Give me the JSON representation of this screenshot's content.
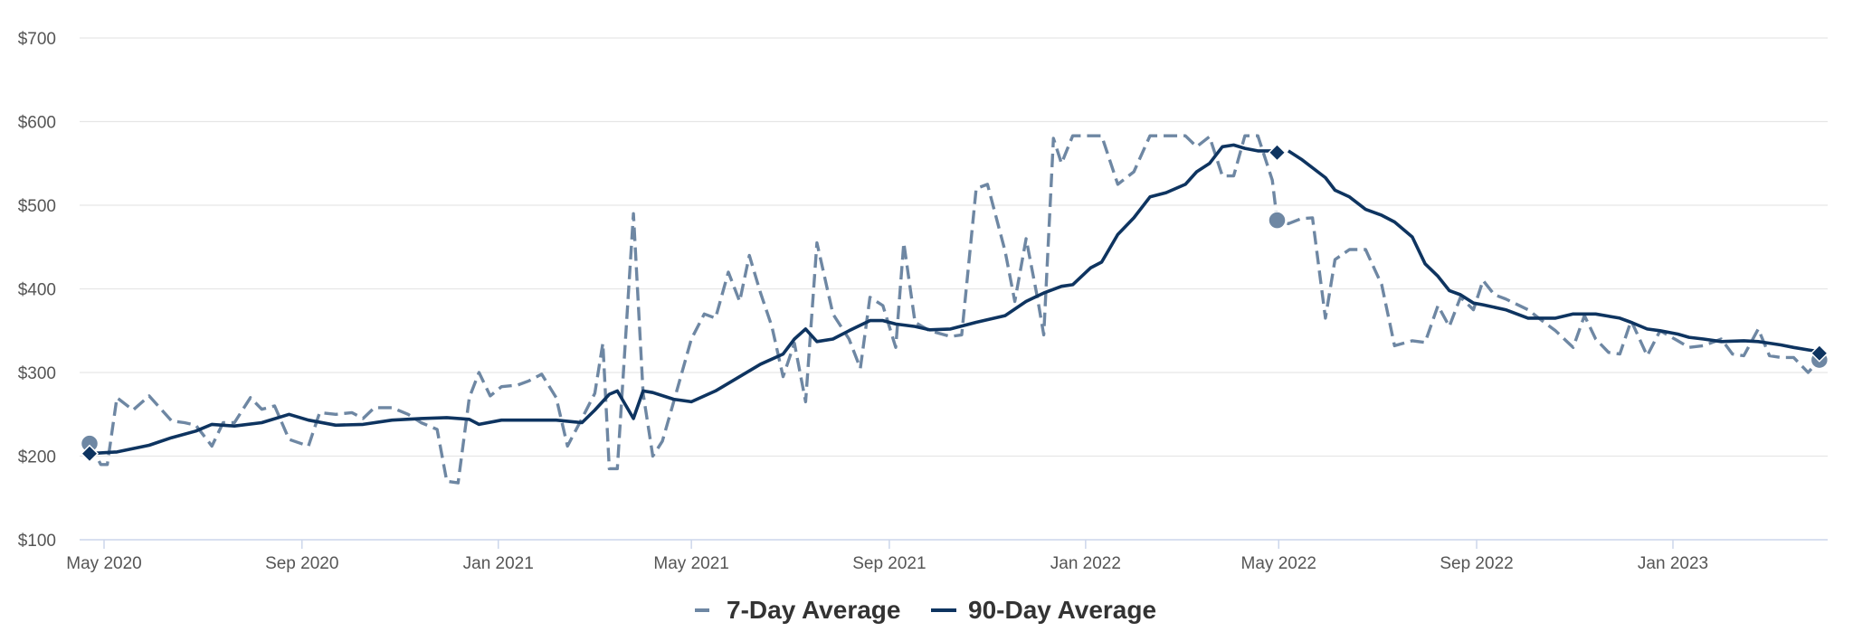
{
  "chart_data": {
    "type": "line",
    "title": "",
    "xlabel": "",
    "ylabel": "",
    "ylim": [
      100,
      700
    ],
    "y_ticks": [
      "$700",
      "$600",
      "$500",
      "$400",
      "$300",
      "$200",
      "$100"
    ],
    "x_ticks": [
      "May 2020",
      "Sep 2020",
      "Jan 2021",
      "May 2021",
      "Sep 2021",
      "Jan 2022",
      "May 2022",
      "Sep 2022",
      "Jan 2023"
    ],
    "grid": true,
    "legend_position": "bottom-center",
    "series": [
      {
        "name": "7-Day Average",
        "style": "dashed",
        "color": "#6e87a3",
        "points": [
          [
            "2020-04-22",
            215
          ],
          [
            "2020-04-29",
            190
          ],
          [
            "2020-05-03",
            190
          ],
          [
            "2020-05-09",
            270
          ],
          [
            "2020-05-19",
            255
          ],
          [
            "2020-05-29",
            272
          ],
          [
            "2020-06-12",
            242
          ],
          [
            "2020-06-20",
            240
          ],
          [
            "2020-06-27",
            237
          ],
          [
            "2020-07-07",
            212
          ],
          [
            "2020-07-14",
            240
          ],
          [
            "2020-07-21",
            240
          ],
          [
            "2020-07-31",
            270
          ],
          [
            "2020-08-07",
            256
          ],
          [
            "2020-08-15",
            260
          ],
          [
            "2020-08-24",
            220
          ],
          [
            "2020-09-05",
            212
          ],
          [
            "2020-09-12",
            252
          ],
          [
            "2020-09-22",
            250
          ],
          [
            "2020-10-02",
            252
          ],
          [
            "2020-10-09",
            245
          ],
          [
            "2020-10-16",
            258
          ],
          [
            "2020-10-27",
            258
          ],
          [
            "2020-11-06",
            250
          ],
          [
            "2020-11-14",
            240
          ],
          [
            "2020-11-24",
            232
          ],
          [
            "2020-11-30",
            170
          ],
          [
            "2020-12-07",
            168
          ],
          [
            "2020-12-14",
            270
          ],
          [
            "2020-12-20",
            300
          ],
          [
            "2020-12-27",
            272
          ],
          [
            "2021-01-03",
            283
          ],
          [
            "2021-01-13",
            285
          ],
          [
            "2021-01-20",
            290
          ],
          [
            "2021-01-28",
            298
          ],
          [
            "2021-02-06",
            270
          ],
          [
            "2021-02-13",
            212
          ],
          [
            "2021-02-22",
            245
          ],
          [
            "2021-03-02",
            275
          ],
          [
            "2021-03-07",
            335
          ],
          [
            "2021-03-11",
            185
          ],
          [
            "2021-03-16",
            185
          ],
          [
            "2021-03-26",
            490
          ],
          [
            "2021-04-01",
            275
          ],
          [
            "2021-04-07",
            200
          ],
          [
            "2021-04-13",
            218
          ],
          [
            "2021-04-20",
            265
          ],
          [
            "2021-05-01",
            340
          ],
          [
            "2021-05-09",
            370
          ],
          [
            "2021-05-16",
            365
          ],
          [
            "2021-05-24",
            420
          ],
          [
            "2021-05-31",
            385
          ],
          [
            "2021-06-06",
            440
          ],
          [
            "2021-06-13",
            395
          ],
          [
            "2021-06-20",
            355
          ],
          [
            "2021-06-27",
            295
          ],
          [
            "2021-07-04",
            335
          ],
          [
            "2021-07-11",
            265
          ],
          [
            "2021-07-18",
            455
          ],
          [
            "2021-07-28",
            370
          ],
          [
            "2021-08-07",
            340
          ],
          [
            "2021-08-14",
            305
          ],
          [
            "2021-08-20",
            390
          ],
          [
            "2021-08-28",
            380
          ],
          [
            "2021-09-05",
            330
          ],
          [
            "2021-09-10",
            455
          ],
          [
            "2021-09-17",
            360
          ],
          [
            "2021-09-26",
            350
          ],
          [
            "2021-10-09",
            343
          ],
          [
            "2021-10-16",
            345
          ],
          [
            "2021-10-25",
            520
          ],
          [
            "2021-11-01",
            525
          ],
          [
            "2021-11-12",
            445
          ],
          [
            "2021-11-18",
            385
          ],
          [
            "2021-11-25",
            460
          ],
          [
            "2021-12-02",
            390
          ],
          [
            "2021-12-06",
            345
          ],
          [
            "2021-12-12",
            580
          ],
          [
            "2021-12-17",
            550
          ],
          [
            "2021-12-24",
            583
          ],
          [
            "2022-01-04",
            583
          ],
          [
            "2022-01-11",
            583
          ],
          [
            "2022-01-21",
            525
          ],
          [
            "2022-01-31",
            540
          ],
          [
            "2022-02-10",
            583
          ],
          [
            "2022-02-20",
            583
          ],
          [
            "2022-03-04",
            583
          ],
          [
            "2022-03-11",
            570
          ],
          [
            "2022-03-19",
            582
          ],
          [
            "2022-03-27",
            535
          ],
          [
            "2022-04-03",
            535
          ],
          [
            "2022-04-10",
            583
          ],
          [
            "2022-04-18",
            583
          ],
          [
            "2022-04-27",
            530
          ],
          [
            "2022-04-30",
            482
          ],
          [
            "2022-05-07",
            478
          ],
          [
            "2022-05-15",
            484
          ],
          [
            "2022-05-22",
            485
          ],
          [
            "2022-05-30",
            365
          ],
          [
            "2022-06-05",
            435
          ],
          [
            "2022-06-14",
            447
          ],
          [
            "2022-06-24",
            447
          ],
          [
            "2022-07-04",
            405
          ],
          [
            "2022-07-12",
            332
          ],
          [
            "2022-07-23",
            338
          ],
          [
            "2022-07-31",
            336
          ],
          [
            "2022-08-08",
            380
          ],
          [
            "2022-08-15",
            355
          ],
          [
            "2022-08-22",
            390
          ],
          [
            "2022-08-30",
            375
          ],
          [
            "2022-09-05",
            410
          ],
          [
            "2022-09-12",
            393
          ],
          [
            "2022-09-19",
            388
          ],
          [
            "2022-10-03",
            375
          ],
          [
            "2022-10-13",
            360
          ],
          [
            "2022-10-20",
            350
          ],
          [
            "2022-10-31",
            330
          ],
          [
            "2022-11-07",
            368
          ],
          [
            "2022-11-14",
            340
          ],
          [
            "2022-11-22",
            324
          ],
          [
            "2022-11-29",
            322
          ],
          [
            "2022-12-06",
            362
          ],
          [
            "2022-12-16",
            320
          ],
          [
            "2022-12-24",
            350
          ],
          [
            "2023-01-04",
            338
          ],
          [
            "2023-01-11",
            330
          ],
          [
            "2023-01-20",
            332
          ],
          [
            "2023-01-31",
            340
          ],
          [
            "2023-02-07",
            322
          ],
          [
            "2023-02-14",
            320
          ],
          [
            "2023-02-23",
            352
          ],
          [
            "2023-03-02",
            320
          ],
          [
            "2023-03-09",
            318
          ],
          [
            "2023-03-17",
            318
          ],
          [
            "2023-03-26",
            300
          ],
          [
            "2023-04-02",
            315
          ]
        ],
        "markers": [
          [
            "2020-04-22",
            215
          ],
          [
            "2022-04-30",
            482
          ],
          [
            "2023-04-02",
            315
          ]
        ]
      },
      {
        "name": "90-Day Average",
        "style": "solid",
        "color": "#0e3460",
        "points": [
          [
            "2020-04-22",
            203
          ],
          [
            "2020-05-09",
            205
          ],
          [
            "2020-05-29",
            213
          ],
          [
            "2020-06-12",
            222
          ],
          [
            "2020-06-27",
            230
          ],
          [
            "2020-07-07",
            238
          ],
          [
            "2020-07-21",
            236
          ],
          [
            "2020-08-07",
            240
          ],
          [
            "2020-08-24",
            250
          ],
          [
            "2020-09-05",
            243
          ],
          [
            "2020-09-22",
            237
          ],
          [
            "2020-10-09",
            238
          ],
          [
            "2020-10-27",
            243
          ],
          [
            "2020-11-14",
            245
          ],
          [
            "2020-11-30",
            246
          ],
          [
            "2020-12-14",
            244
          ],
          [
            "2020-12-20",
            238
          ],
          [
            "2021-01-03",
            243
          ],
          [
            "2021-01-20",
            243
          ],
          [
            "2021-02-06",
            243
          ],
          [
            "2021-02-22",
            240
          ],
          [
            "2021-03-02",
            255
          ],
          [
            "2021-03-11",
            274
          ],
          [
            "2021-03-16",
            278
          ],
          [
            "2021-03-26",
            245
          ],
          [
            "2021-04-01",
            278
          ],
          [
            "2021-04-07",
            276
          ],
          [
            "2021-04-20",
            268
          ],
          [
            "2021-05-01",
            265
          ],
          [
            "2021-05-16",
            278
          ],
          [
            "2021-05-31",
            295
          ],
          [
            "2021-06-13",
            310
          ],
          [
            "2021-06-27",
            322
          ],
          [
            "2021-07-04",
            340
          ],
          [
            "2021-07-11",
            352
          ],
          [
            "2021-07-18",
            337
          ],
          [
            "2021-07-28",
            340
          ],
          [
            "2021-08-07",
            350
          ],
          [
            "2021-08-20",
            362
          ],
          [
            "2021-08-28",
            362
          ],
          [
            "2021-09-05",
            358
          ],
          [
            "2021-09-17",
            355
          ],
          [
            "2021-09-26",
            351
          ],
          [
            "2021-10-09",
            352
          ],
          [
            "2021-10-25",
            360
          ],
          [
            "2021-11-12",
            368
          ],
          [
            "2021-11-25",
            385
          ],
          [
            "2021-12-06",
            395
          ],
          [
            "2021-12-17",
            403
          ],
          [
            "2021-12-24",
            405
          ],
          [
            "2022-01-04",
            425
          ],
          [
            "2022-01-11",
            432
          ],
          [
            "2022-01-21",
            465
          ],
          [
            "2022-01-31",
            485
          ],
          [
            "2022-02-10",
            510
          ],
          [
            "2022-02-20",
            515
          ],
          [
            "2022-03-04",
            525
          ],
          [
            "2022-03-11",
            540
          ],
          [
            "2022-03-19",
            550
          ],
          [
            "2022-03-27",
            570
          ],
          [
            "2022-04-03",
            572
          ],
          [
            "2022-04-10",
            568
          ],
          [
            "2022-04-18",
            565
          ],
          [
            "2022-04-27",
            565
          ],
          [
            "2022-05-07",
            565
          ],
          [
            "2022-05-15",
            555
          ],
          [
            "2022-05-30",
            533
          ],
          [
            "2022-06-05",
            518
          ],
          [
            "2022-06-14",
            510
          ],
          [
            "2022-06-24",
            495
          ],
          [
            "2022-07-04",
            488
          ],
          [
            "2022-07-12",
            480
          ],
          [
            "2022-07-23",
            462
          ],
          [
            "2022-07-31",
            430
          ],
          [
            "2022-08-08",
            415
          ],
          [
            "2022-08-15",
            398
          ],
          [
            "2022-08-22",
            393
          ],
          [
            "2022-08-30",
            383
          ],
          [
            "2022-09-05",
            381
          ],
          [
            "2022-09-19",
            375
          ],
          [
            "2022-10-03",
            365
          ],
          [
            "2022-10-20",
            365
          ],
          [
            "2022-10-31",
            370
          ],
          [
            "2022-11-14",
            370
          ],
          [
            "2022-11-29",
            365
          ],
          [
            "2022-12-06",
            360
          ],
          [
            "2022-12-16",
            352
          ],
          [
            "2022-12-24",
            350
          ],
          [
            "2023-01-04",
            346
          ],
          [
            "2023-01-11",
            342
          ],
          [
            "2023-01-20",
            340
          ],
          [
            "2023-01-31",
            337
          ],
          [
            "2023-02-14",
            338
          ],
          [
            "2023-02-23",
            337
          ],
          [
            "2023-03-02",
            335
          ],
          [
            "2023-03-09",
            333
          ],
          [
            "2023-03-17",
            330
          ],
          [
            "2023-03-26",
            327
          ],
          [
            "2023-04-02",
            325
          ]
        ],
        "breaks_after": [
          "2022-04-27"
        ],
        "markers": [
          [
            "2020-04-22",
            203
          ],
          [
            "2022-04-30",
            563
          ],
          [
            "2023-04-02",
            323
          ]
        ]
      }
    ]
  }
}
